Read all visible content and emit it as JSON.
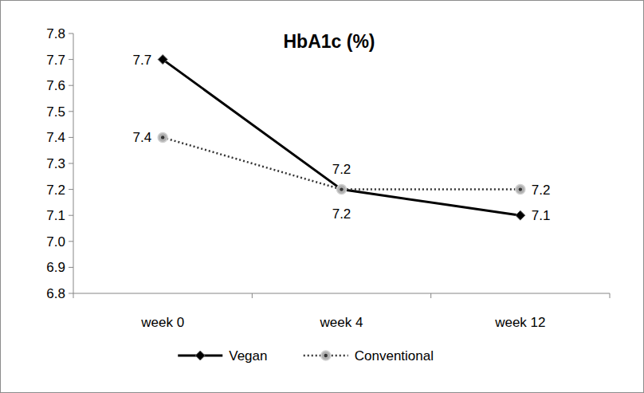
{
  "chart_data": {
    "type": "line",
    "title": "HbA1c (%)",
    "categories": [
      "week 0",
      "week 4",
      "week 12"
    ],
    "series": [
      {
        "name": "Vegan",
        "color": "#000000",
        "values": [
          7.7,
          7.2,
          7.1
        ],
        "marker": "diamond",
        "line_style": "solid"
      },
      {
        "name": "Conventional",
        "color": "#333333",
        "values": [
          7.4,
          7.2,
          7.2
        ],
        "marker": "circle",
        "line_style": "dotted"
      }
    ],
    "ylim": [
      6.8,
      7.8
    ],
    "yticks": [
      6.8,
      6.9,
      {
        "value": 7,
        "label": "7.0"
      },
      7.1,
      7.2,
      7.3,
      7.4,
      7.5,
      7.6,
      7.7,
      7.8
    ],
    "grid": false,
    "legend": "bottom",
    "data_labels": true
  }
}
